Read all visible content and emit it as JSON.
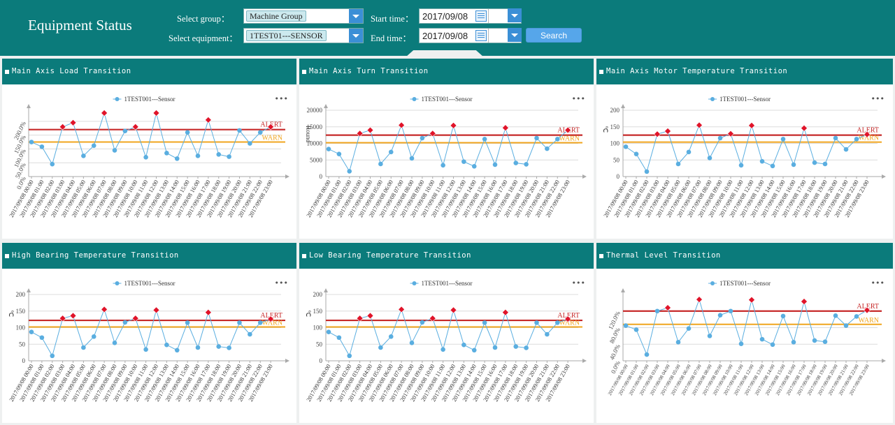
{
  "header": {
    "title": "Equipment Status",
    "group_label": "Select group：",
    "group_value": "Machine Group",
    "equipment_label": "Select equipment：",
    "equipment_value": "1TEST01---SENSOR",
    "start_label": "Start time：",
    "start_value": "2017/09/08",
    "end_label": "End time：",
    "end_value": "2017/09/08",
    "search_label": "Search"
  },
  "colors": {
    "teal": "#0b7b7b",
    "series": "#5aaee0",
    "alert_marker": "#e0142a",
    "alert_line": "#c62828",
    "warn_line": "#f0a51e"
  },
  "chart_data": [
    {
      "type": "line",
      "title": "Main Axis Load Transition",
      "legend": "1TEST001---Sensor",
      "ylabel": "",
      "ylim": [
        0,
        2.4
      ],
      "yticks": [
        "0.0%",
        "50.0%",
        "100.0%",
        "150.0%",
        "200.0%"
      ],
      "ytick_values": [
        0,
        0.5,
        1.0,
        1.5,
        2.0
      ],
      "ytick_rotate": true,
      "alert": 1.7,
      "warn": 1.25,
      "alert_label": "ALERT",
      "warn_label": "WARN",
      "values": [
        1.25,
        1.08,
        0.45,
        1.8,
        1.95,
        0.75,
        1.12,
        2.3,
        0.95,
        1.65,
        1.8,
        0.7,
        2.3,
        0.85,
        0.65,
        1.6,
        0.75,
        2.05,
        0.8,
        0.72,
        1.67,
        1.2,
        1.6,
        1.8
      ]
    },
    {
      "type": "line",
      "title": "Main Axis Turn Transition",
      "legend": "1TEST001---Sensor",
      "ylabel": "Round",
      "ylim": [
        0,
        20000
      ],
      "yticks": [
        "0",
        "5000",
        "10000",
        "15000",
        "20000"
      ],
      "ytick_values": [
        0,
        5000,
        10000,
        15000,
        20000
      ],
      "ytick_rotate": false,
      "alert": 12500,
      "warn": 10200,
      "alert_label": "ALERT",
      "warn_label": "WARN",
      "values": [
        8300,
        6800,
        1600,
        13000,
        14000,
        3800,
        7400,
        15500,
        5500,
        11600,
        13000,
        3400,
        15400,
        4500,
        3100,
        11300,
        3600,
        14700,
        4100,
        3700,
        11600,
        8400,
        11300,
        14000
      ]
    },
    {
      "type": "line",
      "title": "Main Axis Motor Temperature Transition",
      "legend": "1TEST001---Sensor",
      "ylabel": "℃",
      "ylim": [
        0,
        200
      ],
      "yticks": [
        "0",
        "50",
        "100",
        "150",
        "200"
      ],
      "ytick_values": [
        0,
        50,
        100,
        150,
        200
      ],
      "ytick_rotate": false,
      "alert": 125,
      "warn": 104,
      "alert_label": "ALERT",
      "warn_label": "WARN",
      "values": [
        90,
        68,
        15,
        128,
        137,
        38,
        74,
        155,
        56,
        116,
        129,
        34,
        154,
        46,
        32,
        113,
        36,
        146,
        42,
        38,
        116,
        82,
        113,
        127
      ]
    },
    {
      "type": "line",
      "title": "High Bearing Temperature Transition",
      "legend": "1TEST001---Sensor",
      "ylabel": "℃",
      "ylim": [
        0,
        200
      ],
      "yticks": [
        "0",
        "50",
        "100",
        "150",
        "200"
      ],
      "ytick_values": [
        0,
        50,
        100,
        150,
        200
      ],
      "ytick_rotate": false,
      "alert": 122,
      "warn": 102,
      "alert_label": "ALERT",
      "warn_label": "WARN",
      "values": [
        87,
        70,
        15,
        128,
        136,
        40,
        73,
        155,
        54,
        116,
        128,
        34,
        153,
        48,
        32,
        115,
        40,
        146,
        43,
        39,
        115,
        80,
        115,
        126
      ]
    },
    {
      "type": "line",
      "title": "Low Bearing Temperature Transition",
      "legend": "1TEST001---Sensor",
      "ylabel": "℃",
      "ylim": [
        0,
        200
      ],
      "yticks": [
        "0",
        "50",
        "100",
        "150",
        "200"
      ],
      "ytick_values": [
        0,
        50,
        100,
        150,
        200
      ],
      "ytick_rotate": false,
      "alert": 122,
      "warn": 102,
      "alert_label": "ALERT",
      "warn_label": "WARN",
      "values": [
        87,
        70,
        15,
        128,
        136,
        40,
        73,
        155,
        54,
        116,
        128,
        34,
        153,
        48,
        32,
        115,
        40,
        146,
        43,
        39,
        115,
        80,
        115,
        126
      ]
    },
    {
      "type": "line",
      "title": "Thermal Level Transition",
      "legend": "1TEST001---Sensor",
      "ylabel": "",
      "ylim": [
        0,
        1.6
      ],
      "yticks": [
        "0.0%",
        "40.0%",
        "80.0%",
        "120.0%"
      ],
      "ytick_values": [
        0,
        0.4,
        0.8,
        1.2
      ],
      "ytick_rotate": true,
      "alert": 1.2,
      "warn": 0.88,
      "alert_label": "ALERT",
      "warn_label": "WARN",
      "values": [
        0.85,
        0.75,
        0.15,
        1.2,
        1.28,
        0.45,
        0.78,
        1.48,
        0.6,
        1.1,
        1.2,
        0.41,
        1.47,
        0.52,
        0.39,
        1.08,
        0.45,
        1.43,
        0.49,
        0.46,
        1.09,
        0.85,
        1.07,
        1.22
      ]
    }
  ],
  "x_labels": [
    "2017/09/08 00:00",
    "2017/09/08 01:00",
    "2017/09/08 02:00",
    "2017/09/08 03:00",
    "2017/09/08 04:00",
    "2017/09/08 05:00",
    "2017/09/08 06:00",
    "2017/09/08 07:00",
    "2017/09/08 08:00",
    "2017/09/08 09:00",
    "2017/09/08 10:00",
    "2017/09/08 11:00",
    "2017/09/08 12:00",
    "2017/09/08 13:00",
    "2017/09/08 14:00",
    "2017/09/08 15:00",
    "2017/09/08 16:00",
    "2017/09/08 17:00",
    "2017/09/08 18:00",
    "2017/09/08 19:00",
    "2017/09/08 20:00",
    "2017/09/08 21:00",
    "2017/09/08 22:00",
    "2017/09/08 23:00"
  ],
  "menu_label": "•••"
}
